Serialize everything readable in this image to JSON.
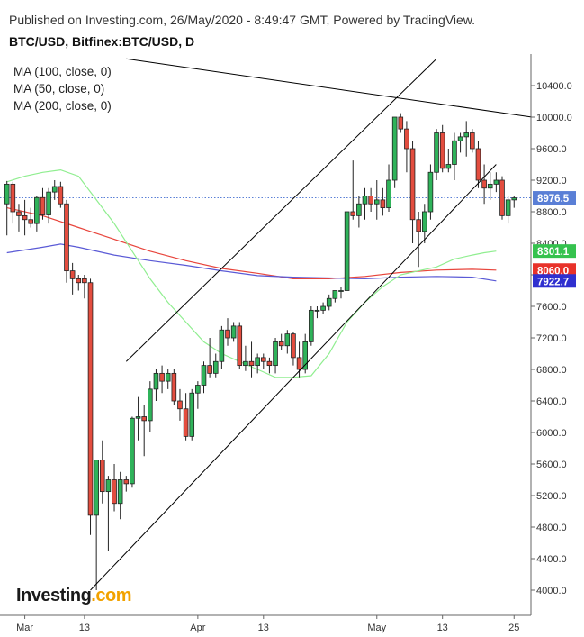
{
  "header": {
    "published": "Published on Investing.com, 26/May/2020 - 8:49:47 GMT, Powered by TradingView.",
    "symbol": "BTC/USD, Bitfinex:BTC/USD, D"
  },
  "legend": [
    "MA (100, close, 0)",
    "MA (50, close, 0)",
    "MA (200, close, 0)"
  ],
  "logo": {
    "text": "Investing",
    "suffix": ".com"
  },
  "colors": {
    "up": "#2fb35a",
    "down": "#e34d3f",
    "ma50": "#90ee90",
    "ma100": "#e8453c",
    "ma200": "#5a5ad6",
    "last": "#5a7fd6",
    "trend": "#000000"
  },
  "chart_data": {
    "type": "candlestick",
    "y_ticks": [
      4000,
      4400,
      4800,
      5200,
      5600,
      6000,
      6400,
      6800,
      7200,
      7600,
      8000,
      8400,
      8800,
      9200,
      9600,
      10000,
      10400
    ],
    "x_labels": [
      {
        "label": "Mar",
        "day": 3
      },
      {
        "label": "13",
        "day": 13
      },
      {
        "label": "Apr",
        "day": 32
      },
      {
        "label": "13",
        "day": 43
      },
      {
        "label": "May",
        "day": 62
      },
      {
        "label": "13",
        "day": 73
      },
      {
        "label": "25",
        "day": 85
      }
    ],
    "last_price": 8976.5,
    "price_labels": [
      {
        "value": 8976.5,
        "text": "8976.5",
        "color": "#5a7fd6"
      },
      {
        "value": 8301.1,
        "text": "8301.1",
        "color": "#35c24e"
      },
      {
        "value": 8060.0,
        "text": "8060.0",
        "color": "#e8322a"
      },
      {
        "value": 7922.7,
        "text": "7922.7",
        "color": "#2f2fcf"
      }
    ],
    "candles": [
      {
        "d": 0,
        "o": 8900,
        "h": 9190,
        "l": 8500,
        "c": 9150
      },
      {
        "d": 1,
        "o": 9150,
        "h": 9180,
        "l": 8650,
        "c": 8800
      },
      {
        "d": 2,
        "o": 8800,
        "h": 8900,
        "l": 8550,
        "c": 8750
      },
      {
        "d": 3,
        "o": 8750,
        "h": 8950,
        "l": 8500,
        "c": 8700
      },
      {
        "d": 4,
        "o": 8700,
        "h": 8850,
        "l": 8600,
        "c": 8650
      },
      {
        "d": 5,
        "o": 8650,
        "h": 9000,
        "l": 8550,
        "c": 8980
      },
      {
        "d": 6,
        "o": 8980,
        "h": 9100,
        "l": 8700,
        "c": 8760
      },
      {
        "d": 7,
        "o": 8760,
        "h": 9100,
        "l": 8650,
        "c": 9050
      },
      {
        "d": 8,
        "o": 9050,
        "h": 9200,
        "l": 8950,
        "c": 9120
      },
      {
        "d": 9,
        "o": 9120,
        "h": 9180,
        "l": 8850,
        "c": 8900
      },
      {
        "d": 10,
        "o": 8900,
        "h": 8950,
        "l": 7900,
        "c": 8050
      },
      {
        "d": 11,
        "o": 8050,
        "h": 8150,
        "l": 7750,
        "c": 7950
      },
      {
        "d": 12,
        "o": 7950,
        "h": 8000,
        "l": 7800,
        "c": 7900
      },
      {
        "d": 13,
        "o": 7950,
        "h": 8000,
        "l": 7700,
        "c": 7900
      },
      {
        "d": 14,
        "o": 7900,
        "h": 7950,
        "l": 4700,
        "c": 4950
      },
      {
        "d": 15,
        "o": 4950,
        "h": 5650,
        "l": 4000,
        "c": 5650
      },
      {
        "d": 16,
        "o": 5650,
        "h": 5900,
        "l": 5100,
        "c": 5250
      },
      {
        "d": 17,
        "o": 5250,
        "h": 5450,
        "l": 4500,
        "c": 5400
      },
      {
        "d": 18,
        "o": 5400,
        "h": 5600,
        "l": 5000,
        "c": 5100
      },
      {
        "d": 19,
        "o": 5100,
        "h": 5500,
        "l": 4900,
        "c": 5400
      },
      {
        "d": 20,
        "o": 5400,
        "h": 5450,
        "l": 5250,
        "c": 5350
      },
      {
        "d": 21,
        "o": 5350,
        "h": 6200,
        "l": 5300,
        "c": 6180
      },
      {
        "d": 22,
        "o": 6180,
        "h": 6450,
        "l": 5900,
        "c": 6200
      },
      {
        "d": 23,
        "o": 6200,
        "h": 6350,
        "l": 5700,
        "c": 6150
      },
      {
        "d": 24,
        "o": 6150,
        "h": 6650,
        "l": 6000,
        "c": 6550
      },
      {
        "d": 25,
        "o": 6550,
        "h": 6800,
        "l": 6400,
        "c": 6750
      },
      {
        "d": 26,
        "o": 6750,
        "h": 6850,
        "l": 6500,
        "c": 6650
      },
      {
        "d": 27,
        "o": 6650,
        "h": 6800,
        "l": 6550,
        "c": 6750
      },
      {
        "d": 28,
        "o": 6750,
        "h": 6800,
        "l": 6350,
        "c": 6400
      },
      {
        "d": 29,
        "o": 6400,
        "h": 6550,
        "l": 6150,
        "c": 6300
      },
      {
        "d": 30,
        "o": 6300,
        "h": 6500,
        "l": 5900,
        "c": 5950
      },
      {
        "d": 31,
        "o": 5950,
        "h": 6550,
        "l": 5900,
        "c": 6500
      },
      {
        "d": 32,
        "o": 6500,
        "h": 6650,
        "l": 6300,
        "c": 6600
      },
      {
        "d": 33,
        "o": 6600,
        "h": 6900,
        "l": 6500,
        "c": 6850
      },
      {
        "d": 34,
        "o": 6850,
        "h": 7200,
        "l": 6700,
        "c": 6750
      },
      {
        "d": 35,
        "o": 6750,
        "h": 7000,
        "l": 6700,
        "c": 6900
      },
      {
        "d": 36,
        "o": 6900,
        "h": 7350,
        "l": 6800,
        "c": 7300
      },
      {
        "d": 37,
        "o": 7300,
        "h": 7450,
        "l": 7100,
        "c": 7200
      },
      {
        "d": 38,
        "o": 7200,
        "h": 7400,
        "l": 7150,
        "c": 7350
      },
      {
        "d": 39,
        "o": 7350,
        "h": 7400,
        "l": 6800,
        "c": 6850
      },
      {
        "d": 40,
        "o": 6850,
        "h": 7100,
        "l": 6780,
        "c": 6900
      },
      {
        "d": 41,
        "o": 6900,
        "h": 7150,
        "l": 6700,
        "c": 6850
      },
      {
        "d": 42,
        "o": 6850,
        "h": 7000,
        "l": 6750,
        "c": 6950
      },
      {
        "d": 43,
        "o": 6950,
        "h": 7000,
        "l": 6800,
        "c": 6900
      },
      {
        "d": 44,
        "o": 6900,
        "h": 6950,
        "l": 6750,
        "c": 6850
      },
      {
        "d": 45,
        "o": 6850,
        "h": 7200,
        "l": 6750,
        "c": 7150
      },
      {
        "d": 46,
        "o": 7150,
        "h": 7250,
        "l": 7050,
        "c": 7100
      },
      {
        "d": 47,
        "o": 7100,
        "h": 7300,
        "l": 7000,
        "c": 7250
      },
      {
        "d": 48,
        "o": 7250,
        "h": 7280,
        "l": 6850,
        "c": 6950
      },
      {
        "d": 49,
        "o": 6950,
        "h": 7150,
        "l": 6700,
        "c": 6800
      },
      {
        "d": 50,
        "o": 6800,
        "h": 7250,
        "l": 6750,
        "c": 7150
      },
      {
        "d": 51,
        "o": 7150,
        "h": 7600,
        "l": 7100,
        "c": 7550
      },
      {
        "d": 52,
        "o": 7550,
        "h": 7600,
        "l": 7450,
        "c": 7550
      },
      {
        "d": 53,
        "o": 7550,
        "h": 7650,
        "l": 7500,
        "c": 7600
      },
      {
        "d": 54,
        "o": 7600,
        "h": 7750,
        "l": 7550,
        "c": 7700
      },
      {
        "d": 55,
        "o": 7700,
        "h": 7800,
        "l": 7650,
        "c": 7800
      },
      {
        "d": 56,
        "o": 7800,
        "h": 7850,
        "l": 7700,
        "c": 7800
      },
      {
        "d": 57,
        "o": 7800,
        "h": 8800,
        "l": 7800,
        "c": 8800
      },
      {
        "d": 58,
        "o": 8800,
        "h": 9450,
        "l": 8700,
        "c": 8750
      },
      {
        "d": 59,
        "o": 8750,
        "h": 9000,
        "l": 8600,
        "c": 8900
      },
      {
        "d": 60,
        "o": 8900,
        "h": 9100,
        "l": 8700,
        "c": 9000
      },
      {
        "d": 61,
        "o": 9000,
        "h": 9100,
        "l": 8800,
        "c": 8900
      },
      {
        "d": 62,
        "o": 8900,
        "h": 9200,
        "l": 8700,
        "c": 8950
      },
      {
        "d": 63,
        "o": 8950,
        "h": 9100,
        "l": 8750,
        "c": 8850
      },
      {
        "d": 64,
        "o": 8850,
        "h": 9400,
        "l": 8800,
        "c": 9200
      },
      {
        "d": 65,
        "o": 9200,
        "h": 10000,
        "l": 9100,
        "c": 10000
      },
      {
        "d": 66,
        "o": 10000,
        "h": 10050,
        "l": 9800,
        "c": 9850
      },
      {
        "d": 67,
        "o": 9850,
        "h": 9950,
        "l": 9300,
        "c": 9600
      },
      {
        "d": 68,
        "o": 9600,
        "h": 9700,
        "l": 8400,
        "c": 8700
      },
      {
        "d": 69,
        "o": 8700,
        "h": 8800,
        "l": 8100,
        "c": 8550
      },
      {
        "d": 70,
        "o": 8550,
        "h": 8900,
        "l": 8400,
        "c": 8800
      },
      {
        "d": 71,
        "o": 8800,
        "h": 9400,
        "l": 8700,
        "c": 9300
      },
      {
        "d": 72,
        "o": 9300,
        "h": 9850,
        "l": 9200,
        "c": 9800
      },
      {
        "d": 73,
        "o": 9800,
        "h": 9900,
        "l": 9300,
        "c": 9350
      },
      {
        "d": 74,
        "o": 9350,
        "h": 9600,
        "l": 9300,
        "c": 9400
      },
      {
        "d": 75,
        "o": 9400,
        "h": 9800,
        "l": 9200,
        "c": 9700
      },
      {
        "d": 76,
        "o": 9700,
        "h": 9800,
        "l": 9550,
        "c": 9750
      },
      {
        "d": 77,
        "o": 9750,
        "h": 9950,
        "l": 9500,
        "c": 9800
      },
      {
        "d": 78,
        "o": 9800,
        "h": 9850,
        "l": 9550,
        "c": 9600
      },
      {
        "d": 79,
        "o": 9600,
        "h": 9700,
        "l": 9100,
        "c": 9200
      },
      {
        "d": 80,
        "o": 9200,
        "h": 9400,
        "l": 8900,
        "c": 9100
      },
      {
        "d": 81,
        "o": 9100,
        "h": 9300,
        "l": 8950,
        "c": 9150
      },
      {
        "d": 82,
        "o": 9150,
        "h": 9300,
        "l": 9050,
        "c": 9200
      },
      {
        "d": 83,
        "o": 9200,
        "h": 9250,
        "l": 8700,
        "c": 8750
      },
      {
        "d": 84,
        "o": 8750,
        "h": 9000,
        "l": 8650,
        "c": 8950
      },
      {
        "d": 85,
        "o": 8950,
        "h": 9000,
        "l": 8850,
        "c": 8976.5
      }
    ],
    "ma50": [
      [
        0,
        9180
      ],
      [
        3,
        9250
      ],
      [
        6,
        9300
      ],
      [
        9,
        9330
      ],
      [
        12,
        9250
      ],
      [
        15,
        8950
      ],
      [
        18,
        8650
      ],
      [
        21,
        8300
      ],
      [
        24,
        7950
      ],
      [
        27,
        7650
      ],
      [
        30,
        7400
      ],
      [
        33,
        7150
      ],
      [
        36,
        7000
      ],
      [
        39,
        6900
      ],
      [
        42,
        6800
      ],
      [
        45,
        6700
      ],
      [
        48,
        6700
      ],
      [
        51,
        6720
      ],
      [
        54,
        7000
      ],
      [
        57,
        7400
      ],
      [
        60,
        7650
      ],
      [
        63,
        7850
      ],
      [
        66,
        8000
      ],
      [
        69,
        8050
      ],
      [
        72,
        8100
      ],
      [
        75,
        8200
      ],
      [
        78,
        8250
      ],
      [
        80,
        8280
      ],
      [
        82,
        8301
      ]
    ],
    "ma100": [
      [
        0,
        8850
      ],
      [
        6,
        8750
      ],
      [
        12,
        8600
      ],
      [
        18,
        8450
      ],
      [
        24,
        8300
      ],
      [
        30,
        8180
      ],
      [
        36,
        8080
      ],
      [
        42,
        8020
      ],
      [
        48,
        7950
      ],
      [
        54,
        7950
      ],
      [
        60,
        7980
      ],
      [
        66,
        8030
      ],
      [
        72,
        8060
      ],
      [
        78,
        8070
      ],
      [
        82,
        8060
      ]
    ],
    "ma200": [
      [
        0,
        8280
      ],
      [
        6,
        8350
      ],
      [
        9,
        8390
      ],
      [
        12,
        8350
      ],
      [
        18,
        8250
      ],
      [
        24,
        8180
      ],
      [
        30,
        8120
      ],
      [
        36,
        8050
      ],
      [
        42,
        7990
      ],
      [
        48,
        7970
      ],
      [
        54,
        7960
      ],
      [
        60,
        7950
      ],
      [
        66,
        7970
      ],
      [
        72,
        7980
      ],
      [
        78,
        7970
      ],
      [
        82,
        7922.7
      ]
    ],
    "trendlines": [
      {
        "from": [
          14,
          4000
        ],
        "to": [
          82,
          9400
        ]
      },
      {
        "from": [
          20,
          6900
        ],
        "to": [
          72,
          10740
        ]
      },
      {
        "from": [
          20,
          10740
        ],
        "to": [
          88,
          10000
        ]
      }
    ]
  }
}
